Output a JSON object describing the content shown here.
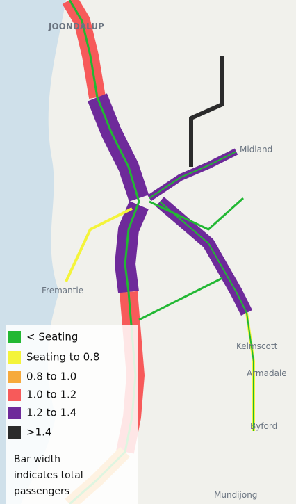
{
  "map": {
    "places": [
      "JOONDALUP",
      "Fremantle",
      "Midland",
      "Kelmscott",
      "Armadale",
      "Byford",
      "Mundijong"
    ],
    "legend": {
      "items": [
        {
          "label": "< Seating",
          "color": "#22b833"
        },
        {
          "label": "Seating to 0.8",
          "color": "#f4f43a"
        },
        {
          "label": "0.8 to 1.0",
          "color": "#f6aa3c"
        },
        {
          "label": "1.0 to 1.2",
          "color": "#f75a5a"
        },
        {
          "label": "1.2 to 1.4",
          "color": "#6e2a9a"
        },
        {
          "label": ">1.4",
          "color": "#2b2b2b"
        }
      ]
    },
    "note": [
      "Bar width",
      "indicates total",
      "passengers"
    ]
  }
}
